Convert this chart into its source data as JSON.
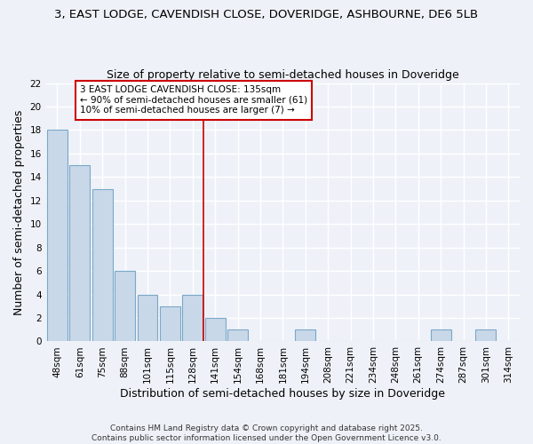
{
  "title_line1": "3, EAST LODGE, CAVENDISH CLOSE, DOVERIDGE, ASHBOURNE, DE6 5LB",
  "title_line2": "Size of property relative to semi-detached houses in Doveridge",
  "xlabel": "Distribution of semi-detached houses by size in Doveridge",
  "ylabel": "Number of semi-detached properties",
  "bar_labels": [
    "48sqm",
    "61sqm",
    "75sqm",
    "88sqm",
    "101sqm",
    "115sqm",
    "128sqm",
    "141sqm",
    "154sqm",
    "168sqm",
    "181sqm",
    "194sqm",
    "208sqm",
    "221sqm",
    "234sqm",
    "248sqm",
    "261sqm",
    "274sqm",
    "287sqm",
    "301sqm",
    "314sqm"
  ],
  "bar_values": [
    18,
    15,
    13,
    6,
    4,
    3,
    4,
    2,
    1,
    0,
    0,
    1,
    0,
    0,
    0,
    0,
    0,
    1,
    0,
    1,
    0
  ],
  "bar_color": "#c8d8e8",
  "bar_edge_color": "#7aa8c8",
  "background_color": "#eef2f8",
  "grid_color": "#ffffff",
  "red_line_x": 6.5,
  "annotation_text": "3 EAST LODGE CAVENDISH CLOSE: 135sqm\n← 90% of semi-detached houses are smaller (61)\n10% of semi-detached houses are larger (7) →",
  "annotation_box_color": "#ffffff",
  "annotation_edge_color": "#cc0000",
  "red_line_color": "#cc0000",
  "ylim": [
    0,
    22
  ],
  "yticks": [
    0,
    2,
    4,
    6,
    8,
    10,
    12,
    14,
    16,
    18,
    20,
    22
  ],
  "footer_text": "Contains HM Land Registry data © Crown copyright and database right 2025.\nContains public sector information licensed under the Open Government Licence v3.0.",
  "title_fontsize": 9.5,
  "subtitle_fontsize": 9,
  "axis_label_fontsize": 9,
  "tick_fontsize": 7.5,
  "annotation_fontsize": 7.5,
  "footer_fontsize": 6.5
}
